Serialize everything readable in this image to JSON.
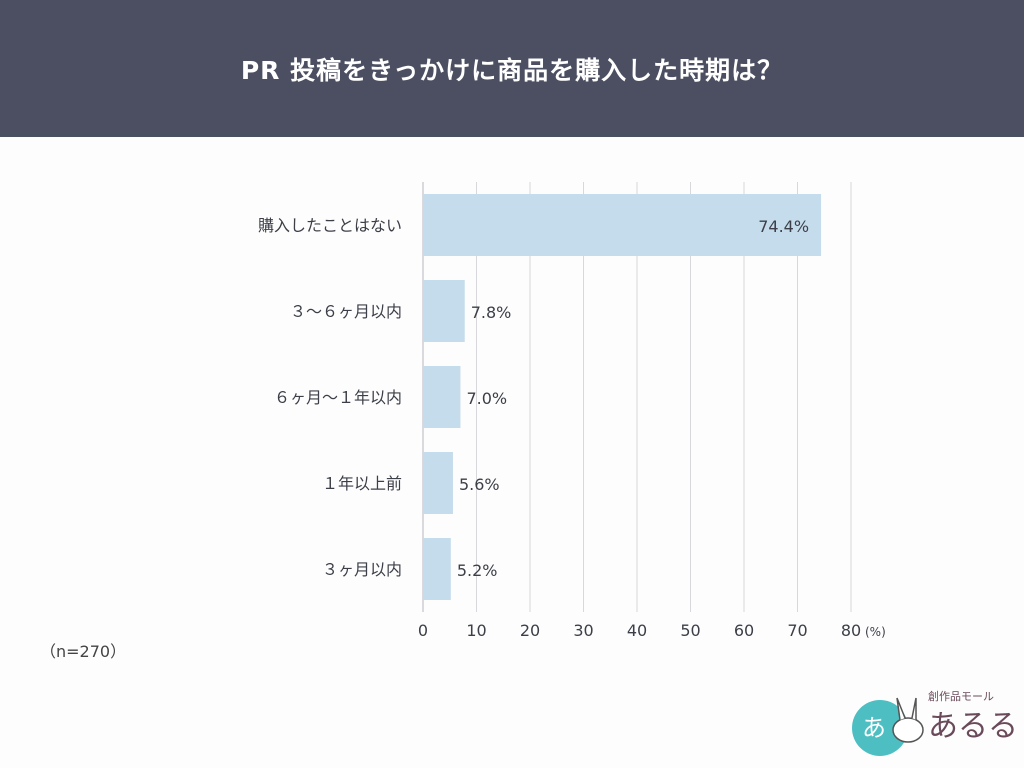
{
  "header": {
    "title": "PR 投稿をきっかけに商品を購入した時期は？"
  },
  "note": "（n=270）",
  "logo": {
    "text": "創作品モール あるる"
  },
  "chart_data": {
    "type": "bar",
    "orientation": "horizontal",
    "title": "PR 投稿をきっかけに商品を購入した時期は？",
    "categories": [
      "購入したことはない",
      "３～６ヶ月以内",
      "６ヶ月～１年以内",
      "１年以上前",
      "３ヶ月以内"
    ],
    "values": [
      74.4,
      7.8,
      7.0,
      5.6,
      5.2
    ],
    "data_labels": [
      "74.4%",
      "7.8%",
      "7.0%",
      "5.6%",
      "5.2%"
    ],
    "xlim": [
      0,
      80
    ],
    "xticks": [
      "0",
      "10",
      "20",
      "30",
      "40",
      "50",
      "60",
      "70",
      "80"
    ],
    "xunit": "(%)",
    "grid": true,
    "colors": {
      "bar": "#c5dcec",
      "header": "#4b4f61",
      "grid": "#d8d8dc"
    }
  }
}
